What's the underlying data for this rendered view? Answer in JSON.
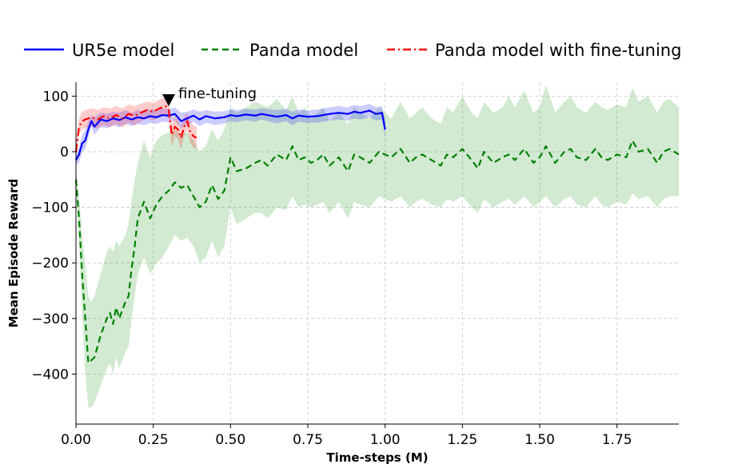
{
  "chart_data": {
    "type": "line",
    "title": "",
    "xlabel": "Time-steps (M)",
    "ylabel": "Mean Episode Reward",
    "xlim": [
      0,
      1.95
    ],
    "ylim": [
      -490,
      125
    ],
    "xticks": [
      0,
      0.25,
      0.5,
      0.75,
      1.0,
      1.25,
      1.5,
      1.75
    ],
    "xtick_labels": [
      "0.00",
      "0.25",
      "0.50",
      "0.75",
      "1.00",
      "1.25",
      "1.50",
      "1.75"
    ],
    "yticks": [
      -400,
      -300,
      -200,
      -100,
      0,
      100
    ],
    "ytick_labels": [
      "−400",
      "−300",
      "−200",
      "−100",
      "0",
      "100"
    ],
    "grid": true,
    "legend_position": "top",
    "annotation": {
      "text": "fine-tuning",
      "x": 0.3,
      "y": 92
    },
    "series": [
      {
        "name": "UR5e model",
        "color": "#0000ff",
        "band_color": "#0000ff",
        "line_style": "solid",
        "x": [
          0.0,
          0.01,
          0.02,
          0.03,
          0.04,
          0.05,
          0.06,
          0.08,
          0.1,
          0.12,
          0.14,
          0.16,
          0.18,
          0.2,
          0.22,
          0.24,
          0.26,
          0.28,
          0.3,
          0.32,
          0.34,
          0.36,
          0.38,
          0.4,
          0.42,
          0.45,
          0.48,
          0.5,
          0.52,
          0.55,
          0.58,
          0.6,
          0.62,
          0.65,
          0.68,
          0.7,
          0.72,
          0.75,
          0.78,
          0.8,
          0.82,
          0.85,
          0.88,
          0.9,
          0.92,
          0.95,
          0.97,
          0.99,
          1.0
        ],
        "y": [
          -15,
          -5,
          15,
          20,
          40,
          55,
          45,
          58,
          55,
          60,
          57,
          62,
          58,
          62,
          60,
          64,
          62,
          66,
          65,
          68,
          55,
          60,
          65,
          58,
          64,
          60,
          62,
          66,
          64,
          67,
          65,
          68,
          66,
          63,
          66,
          60,
          65,
          63,
          64,
          66,
          68,
          70,
          68,
          72,
          70,
          74,
          68,
          70,
          40
        ],
        "band_upper": [
          -5,
          10,
          30,
          40,
          55,
          65,
          62,
          70,
          68,
          72,
          70,
          75,
          70,
          75,
          72,
          77,
          75,
          78,
          77,
          80,
          70,
          72,
          76,
          72,
          75,
          72,
          73,
          76,
          75,
          77,
          76,
          78,
          77,
          75,
          77,
          72,
          76,
          74,
          76,
          78,
          80,
          82,
          80,
          84,
          82,
          86,
          80,
          82,
          55
        ],
        "band_lower": [
          -25,
          -20,
          0,
          5,
          25,
          45,
          30,
          45,
          42,
          48,
          44,
          50,
          46,
          50,
          48,
          52,
          50,
          54,
          53,
          56,
          42,
          48,
          54,
          46,
          52,
          48,
          51,
          55,
          53,
          57,
          54,
          58,
          55,
          51,
          55,
          48,
          54,
          52,
          52,
          54,
          56,
          58,
          56,
          60,
          58,
          62,
          56,
          58,
          25
        ]
      },
      {
        "name": "Panda model",
        "color": "#008000",
        "band_color": "#2ca02c",
        "line_style": "dashed",
        "x": [
          0.0,
          0.01,
          0.02,
          0.03,
          0.04,
          0.05,
          0.06,
          0.08,
          0.1,
          0.11,
          0.12,
          0.13,
          0.14,
          0.16,
          0.17,
          0.18,
          0.19,
          0.2,
          0.22,
          0.24,
          0.26,
          0.28,
          0.3,
          0.32,
          0.34,
          0.36,
          0.38,
          0.4,
          0.42,
          0.44,
          0.46,
          0.48,
          0.5,
          0.52,
          0.55,
          0.58,
          0.6,
          0.62,
          0.65,
          0.68,
          0.7,
          0.72,
          0.74,
          0.76,
          0.78,
          0.8,
          0.82,
          0.85,
          0.88,
          0.9,
          0.92,
          0.95,
          0.98,
          1.0,
          1.02,
          1.05,
          1.08,
          1.1,
          1.12,
          1.15,
          1.18,
          1.2,
          1.22,
          1.25,
          1.28,
          1.3,
          1.32,
          1.35,
          1.38,
          1.4,
          1.42,
          1.45,
          1.48,
          1.5,
          1.52,
          1.55,
          1.58,
          1.6,
          1.62,
          1.65,
          1.68,
          1.7,
          1.72,
          1.75,
          1.78,
          1.8,
          1.82,
          1.85,
          1.88,
          1.9,
          1.92,
          1.95
        ],
        "y": [
          -50,
          -120,
          -220,
          -300,
          -380,
          -375,
          -370,
          -330,
          -300,
          -290,
          -310,
          -280,
          -300,
          -270,
          -260,
          -210,
          -170,
          -120,
          -90,
          -120,
          -95,
          -80,
          -70,
          -55,
          -65,
          -60,
          -80,
          -100,
          -90,
          -60,
          -85,
          -70,
          -10,
          -35,
          -30,
          -20,
          -15,
          -25,
          -5,
          -15,
          10,
          -15,
          -10,
          -20,
          -15,
          -5,
          -25,
          -10,
          -35,
          -5,
          -10,
          -20,
          0,
          -5,
          -10,
          5,
          -20,
          -10,
          -5,
          -15,
          -25,
          -5,
          -10,
          5,
          -15,
          -30,
          0,
          -20,
          -10,
          -5,
          -15,
          5,
          -20,
          -10,
          10,
          -20,
          0,
          5,
          -10,
          -15,
          5,
          -10,
          -15,
          -5,
          -10,
          20,
          0,
          5,
          -20,
          0,
          5,
          -5
        ],
        "band_upper": [
          -40,
          -80,
          -150,
          -200,
          -260,
          -270,
          -260,
          -220,
          -180,
          -170,
          -180,
          -160,
          -170,
          -150,
          -130,
          -90,
          -50,
          -20,
          20,
          -10,
          20,
          30,
          35,
          40,
          30,
          35,
          20,
          0,
          10,
          40,
          20,
          40,
          80,
          70,
          80,
          90,
          85,
          80,
          95,
          75,
          100,
          70,
          80,
          60,
          70,
          80,
          55,
          70,
          50,
          80,
          70,
          60,
          80,
          70,
          60,
          90,
          60,
          70,
          80,
          60,
          50,
          80,
          70,
          100,
          70,
          60,
          90,
          70,
          80,
          100,
          80,
          110,
          70,
          80,
          120,
          70,
          90,
          100,
          80,
          70,
          90,
          80,
          75,
          85,
          80,
          115,
          90,
          100,
          70,
          90,
          95,
          80
        ],
        "band_lower": [
          -60,
          -160,
          -290,
          -400,
          -460,
          -460,
          -450,
          -420,
          -390,
          -380,
          -400,
          -370,
          -390,
          -360,
          -350,
          -300,
          -260,
          -220,
          -190,
          -220,
          -200,
          -190,
          -170,
          -150,
          -160,
          -155,
          -170,
          -200,
          -190,
          -160,
          -190,
          -170,
          -100,
          -130,
          -120,
          -110,
          -110,
          -120,
          -100,
          -105,
          -80,
          -100,
          -95,
          -100,
          -95,
          -90,
          -110,
          -90,
          -120,
          -90,
          -95,
          -100,
          -80,
          -85,
          -90,
          -80,
          -100,
          -90,
          -85,
          -95,
          -100,
          -85,
          -90,
          -80,
          -100,
          -110,
          -85,
          -100,
          -90,
          -85,
          -95,
          -80,
          -100,
          -90,
          -80,
          -100,
          -85,
          -80,
          -95,
          -100,
          -80,
          -95,
          -100,
          -90,
          -95,
          -75,
          -85,
          -80,
          -100,
          -85,
          -80,
          -80
        ]
      },
      {
        "name": "Panda model with fine-tuning",
        "color": "#ff0000",
        "band_color": "#ff0000",
        "line_style": "dashdot",
        "x": [
          0.0,
          0.01,
          0.02,
          0.03,
          0.05,
          0.07,
          0.09,
          0.11,
          0.13,
          0.15,
          0.17,
          0.19,
          0.21,
          0.23,
          0.25,
          0.27,
          0.29,
          0.3,
          0.31,
          0.32,
          0.33,
          0.34,
          0.35,
          0.36,
          0.37,
          0.38,
          0.39
        ],
        "y": [
          0,
          45,
          55,
          58,
          62,
          58,
          64,
          60,
          66,
          60,
          68,
          65,
          70,
          75,
          72,
          78,
          82,
          75,
          30,
          45,
          40,
          25,
          45,
          55,
          35,
          28,
          25
        ],
        "band_upper": [
          15,
          60,
          72,
          75,
          78,
          75,
          80,
          78,
          82,
          78,
          85,
          82,
          86,
          90,
          88,
          94,
          98,
          92,
          50,
          62,
          58,
          45,
          62,
          70,
          55,
          48,
          45
        ],
        "band_lower": [
          -15,
          30,
          40,
          42,
          46,
          42,
          48,
          44,
          50,
          44,
          52,
          48,
          54,
          60,
          56,
          62,
          66,
          58,
          10,
          28,
          22,
          5,
          28,
          40,
          15,
          8,
          5
        ]
      }
    ]
  }
}
